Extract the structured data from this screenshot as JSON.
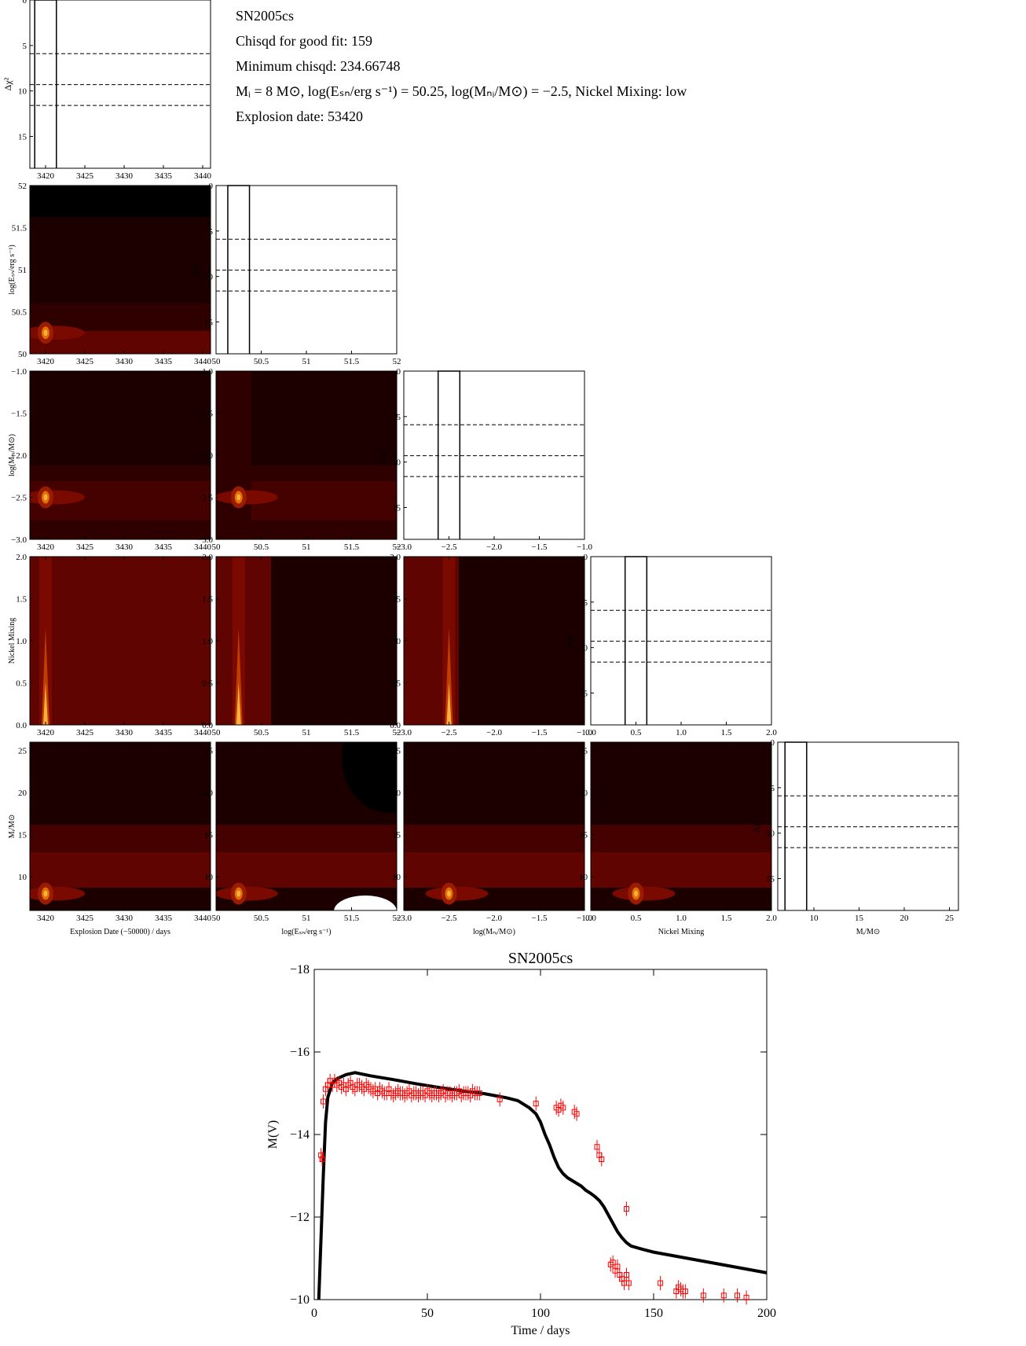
{
  "info": {
    "sn_name": "SN2005cs",
    "chisqd_good": "Chisqd for good fit: 159",
    "chisqd_min": "Minimum chisqd: 234.66748",
    "params": "Mᵢ = 8 M⊙, log(Eₛₙ/erg s⁻¹) = 50.25, log(Mₙᵢ/M⊙) = −2.5, Nickel Mixing: low",
    "explosion": "Explosion date: 53420"
  },
  "colors": {
    "c0": "#000000",
    "c1": "#1c0000",
    "c2": "#2f0000",
    "c3": "#450100",
    "c4": "#5f0400",
    "c5": "#7a0a00",
    "c6": "#9a1c00",
    "c7": "#c03e00",
    "c8": "#e07000",
    "c9": "#f8b040",
    "red": "#ff0000"
  },
  "chart_data": [
    {
      "type": "contour-corner",
      "parameters": [
        {
          "key": "date",
          "label": "Explosion Date (−50000) / days",
          "range": [
            3418,
            3441
          ],
          "ticks": [
            3420,
            3425,
            3430,
            3435,
            3440
          ]
        },
        {
          "key": "esn",
          "label": "log(Eₛₙ/erg s⁻¹)",
          "range": [
            50.0,
            52.0
          ],
          "ticks": [
            50.0,
            50.5,
            51.0,
            51.5,
            52.0
          ]
        },
        {
          "key": "mni",
          "label": "log(Mₙᵢ/M⊙)",
          "range": [
            -3.0,
            -1.0
          ],
          "ticks": [
            -3.0,
            -2.5,
            -2.0,
            -1.5,
            -1.0
          ]
        },
        {
          "key": "mix",
          "label": "Nickel Mixing",
          "range": [
            0.0,
            2.0
          ],
          "ticks": [
            0.0,
            0.5,
            1.0,
            1.5,
            2.0
          ]
        },
        {
          "key": "mi",
          "label": "Mᵢ/M⊙",
          "range": [
            6,
            26
          ],
          "ticks": [
            10,
            15,
            20,
            25
          ]
        }
      ],
      "delta_chi2": {
        "ylabel": "Δχ²",
        "yticks": [
          0,
          5,
          10,
          15
        ],
        "yrange": [
          0,
          18.5
        ],
        "levels": [
          5.9,
          9.3,
          11.6
        ]
      },
      "best_fit": {
        "date": 3420,
        "esn": 50.25,
        "mni": -2.5,
        "mix": 0.5,
        "mi": 8
      }
    },
    {
      "type": "scatter+line",
      "title": "SN2005cs",
      "xlabel": "Time / days",
      "ylabel": "M(V)",
      "xlim": [
        0,
        200
      ],
      "ylim": [
        -10,
        -18
      ],
      "xticks": [
        0,
        50,
        100,
        150,
        200
      ],
      "yticks": [
        -10,
        -12,
        -14,
        -16,
        -18
      ],
      "model_x": [
        2,
        3,
        4,
        5,
        6,
        8,
        10,
        14,
        18,
        25,
        35,
        45,
        55,
        65,
        75,
        80,
        85,
        90,
        95,
        98,
        100,
        102,
        104,
        106,
        108,
        110,
        112,
        115,
        118,
        120,
        122,
        124,
        126,
        128,
        130,
        132,
        134,
        136,
        138,
        140,
        145,
        150,
        160,
        170,
        180,
        190,
        200
      ],
      "model_y": [
        -10.0,
        -11.5,
        -13.0,
        -14.3,
        -14.9,
        -15.25,
        -15.35,
        -15.45,
        -15.5,
        -15.42,
        -15.33,
        -15.23,
        -15.14,
        -15.06,
        -14.99,
        -14.94,
        -14.89,
        -14.82,
        -14.65,
        -14.5,
        -14.3,
        -14.0,
        -13.75,
        -13.45,
        -13.2,
        -13.05,
        -12.95,
        -12.85,
        -12.75,
        -12.65,
        -12.58,
        -12.5,
        -12.4,
        -12.25,
        -12.05,
        -11.85,
        -11.65,
        -11.5,
        -11.38,
        -11.3,
        -11.22,
        -11.15,
        -11.05,
        -10.95,
        -10.85,
        -10.75,
        -10.65
      ],
      "obs_x": [
        3,
        3.5,
        4,
        5,
        6,
        7,
        8,
        9,
        10,
        11,
        12,
        13,
        14,
        15,
        16,
        17,
        18,
        19,
        20,
        21,
        22,
        23,
        24,
        25,
        26,
        27,
        28,
        29,
        30,
        31,
        32,
        33,
        34,
        35,
        36,
        37,
        38,
        39,
        40,
        41,
        42,
        43,
        44,
        45,
        46,
        47,
        48,
        49,
        50,
        51,
        52,
        53,
        54,
        55,
        56,
        57,
        58,
        59,
        60,
        61,
        62,
        63,
        64,
        65,
        66,
        67,
        68,
        69,
        70,
        71,
        72,
        73,
        82,
        98,
        107,
        108,
        109,
        110,
        115,
        116,
        125,
        126,
        127,
        138,
        131,
        132,
        133,
        134,
        135,
        136,
        137,
        138,
        139,
        153,
        160,
        161,
        162,
        163,
        164,
        172,
        181,
        187,
        191
      ],
      "obs_y": [
        -13.5,
        -13.4,
        -14.8,
        -15.1,
        -15.2,
        -15.3,
        -15.2,
        -15.3,
        -15.2,
        -15.25,
        -15.15,
        -15.2,
        -15.1,
        -15.2,
        -15.25,
        -15.15,
        -15.1,
        -15.2,
        -15.2,
        -15.15,
        -15.1,
        -15.2,
        -15.15,
        -15.1,
        -15.05,
        -15.1,
        -15.0,
        -15.1,
        -15.05,
        -15.0,
        -15.0,
        -15.1,
        -15.0,
        -14.95,
        -15.0,
        -15.05,
        -15.0,
        -15.0,
        -14.95,
        -15.0,
        -15.05,
        -14.95,
        -15.0,
        -15.0,
        -14.95,
        -15.0,
        -15.0,
        -14.95,
        -15.05,
        -15.0,
        -14.95,
        -15.0,
        -15.0,
        -14.95,
        -15.0,
        -15.05,
        -14.95,
        -15.0,
        -15.0,
        -14.95,
        -15.0,
        -15.0,
        -15.05,
        -14.95,
        -15.0,
        -15.0,
        -15.0,
        -14.95,
        -15.05,
        -15.0,
        -15.0,
        -15.0,
        -14.85,
        -14.75,
        -14.65,
        -14.6,
        -14.7,
        -14.65,
        -14.55,
        -14.5,
        -13.7,
        -13.5,
        -13.4,
        -12.2,
        -10.85,
        -10.9,
        -10.7,
        -10.8,
        -10.6,
        -10.5,
        -10.4,
        -10.6,
        -10.4,
        -10.4,
        -10.2,
        -10.3,
        -10.25,
        -10.2,
        -10.2,
        -10.1,
        -10.1,
        -10.1,
        -10.05
      ]
    }
  ]
}
